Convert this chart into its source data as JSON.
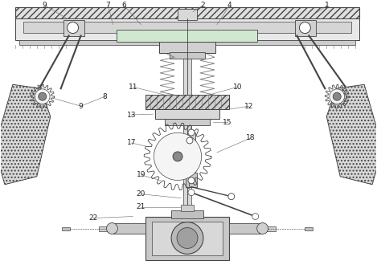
{
  "fig_width": 4.69,
  "fig_height": 3.35,
  "dpi": 100,
  "bg_color": "#ffffff",
  "lc": "#777777",
  "dc": "#444444",
  "label_fs": 6.5,
  "label_color": "#222222"
}
